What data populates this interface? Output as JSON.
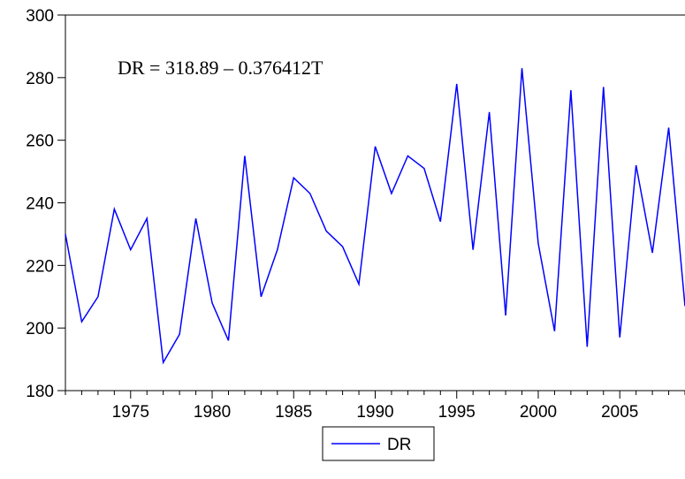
{
  "chart_data": {
    "type": "line",
    "title": "",
    "xlabel": "",
    "ylabel": "",
    "annotation": "DR = 318.89 – 0.376412T",
    "xlim": [
      1971,
      2009
    ],
    "ylim": [
      180,
      300
    ],
    "yticks": [
      180,
      200,
      220,
      240,
      260,
      280,
      300
    ],
    "xticks": [
      1975,
      1980,
      1985,
      1990,
      1995,
      2000,
      2005
    ],
    "grid": false,
    "legend": {
      "position": "bottom-center",
      "entries": [
        "DR"
      ]
    },
    "series": [
      {
        "name": "DR",
        "color": "#0000ff",
        "x": [
          1971,
          1972,
          1973,
          1974,
          1975,
          1976,
          1977,
          1978,
          1979,
          1980,
          1981,
          1982,
          1983,
          1984,
          1985,
          1986,
          1987,
          1988,
          1989,
          1990,
          1991,
          1992,
          1993,
          1994,
          1995,
          1996,
          1997,
          1998,
          1999,
          2000,
          2001,
          2002,
          2003,
          2004,
          2005,
          2006,
          2007,
          2008,
          2009
        ],
        "y": [
          230,
          202,
          210,
          238,
          225,
          235,
          189,
          198,
          235,
          208,
          196,
          255,
          210,
          225,
          248,
          243,
          231,
          226,
          214,
          258,
          243,
          255,
          251,
          234,
          278,
          225,
          269,
          204,
          283,
          227,
          199,
          276,
          194,
          277,
          197,
          252,
          224,
          264,
          207
        ]
      }
    ]
  }
}
